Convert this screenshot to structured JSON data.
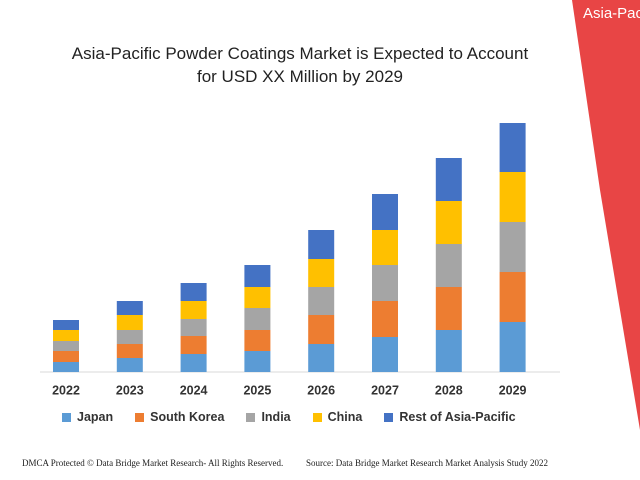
{
  "chart_data": {
    "type": "stacked_bar",
    "title": "Asia-Pacific Powder Coatings Market is Expected to Account for USD XX Million by 2029",
    "categories": [
      "2022",
      "2023",
      "2024",
      "2025",
      "2026",
      "2027",
      "2028",
      "2029"
    ],
    "series": [
      {
        "name": "Japan",
        "color": "#5b9bd5",
        "values": [
          10,
          14,
          18,
          21,
          28,
          35,
          42,
          50
        ]
      },
      {
        "name": "South Korea",
        "color": "#ed7d31",
        "values": [
          11,
          14,
          18,
          21,
          29,
          36,
          43,
          50
        ]
      },
      {
        "name": "India",
        "color": "#a5a5a5",
        "values": [
          10,
          14,
          17,
          22,
          28,
          36,
          43,
          50
        ]
      },
      {
        "name": "China",
        "color": "#ffc000",
        "values": [
          11,
          15,
          18,
          21,
          28,
          35,
          43,
          50
        ]
      },
      {
        "name": "Rest of Asia-Pacific",
        "color": "#4472c4",
        "values": [
          10,
          14,
          18,
          22,
          29,
          36,
          43,
          49
        ]
      }
    ],
    "ylim": [
      0,
      250
    ]
  },
  "banner": "Asia-Pac",
  "footer": {
    "left": "DMCA Protected © Data Bridge Market Research- All Rights Reserved.",
    "right": "Source: Data Bridge Market Research Market Analysis Study 2022"
  }
}
